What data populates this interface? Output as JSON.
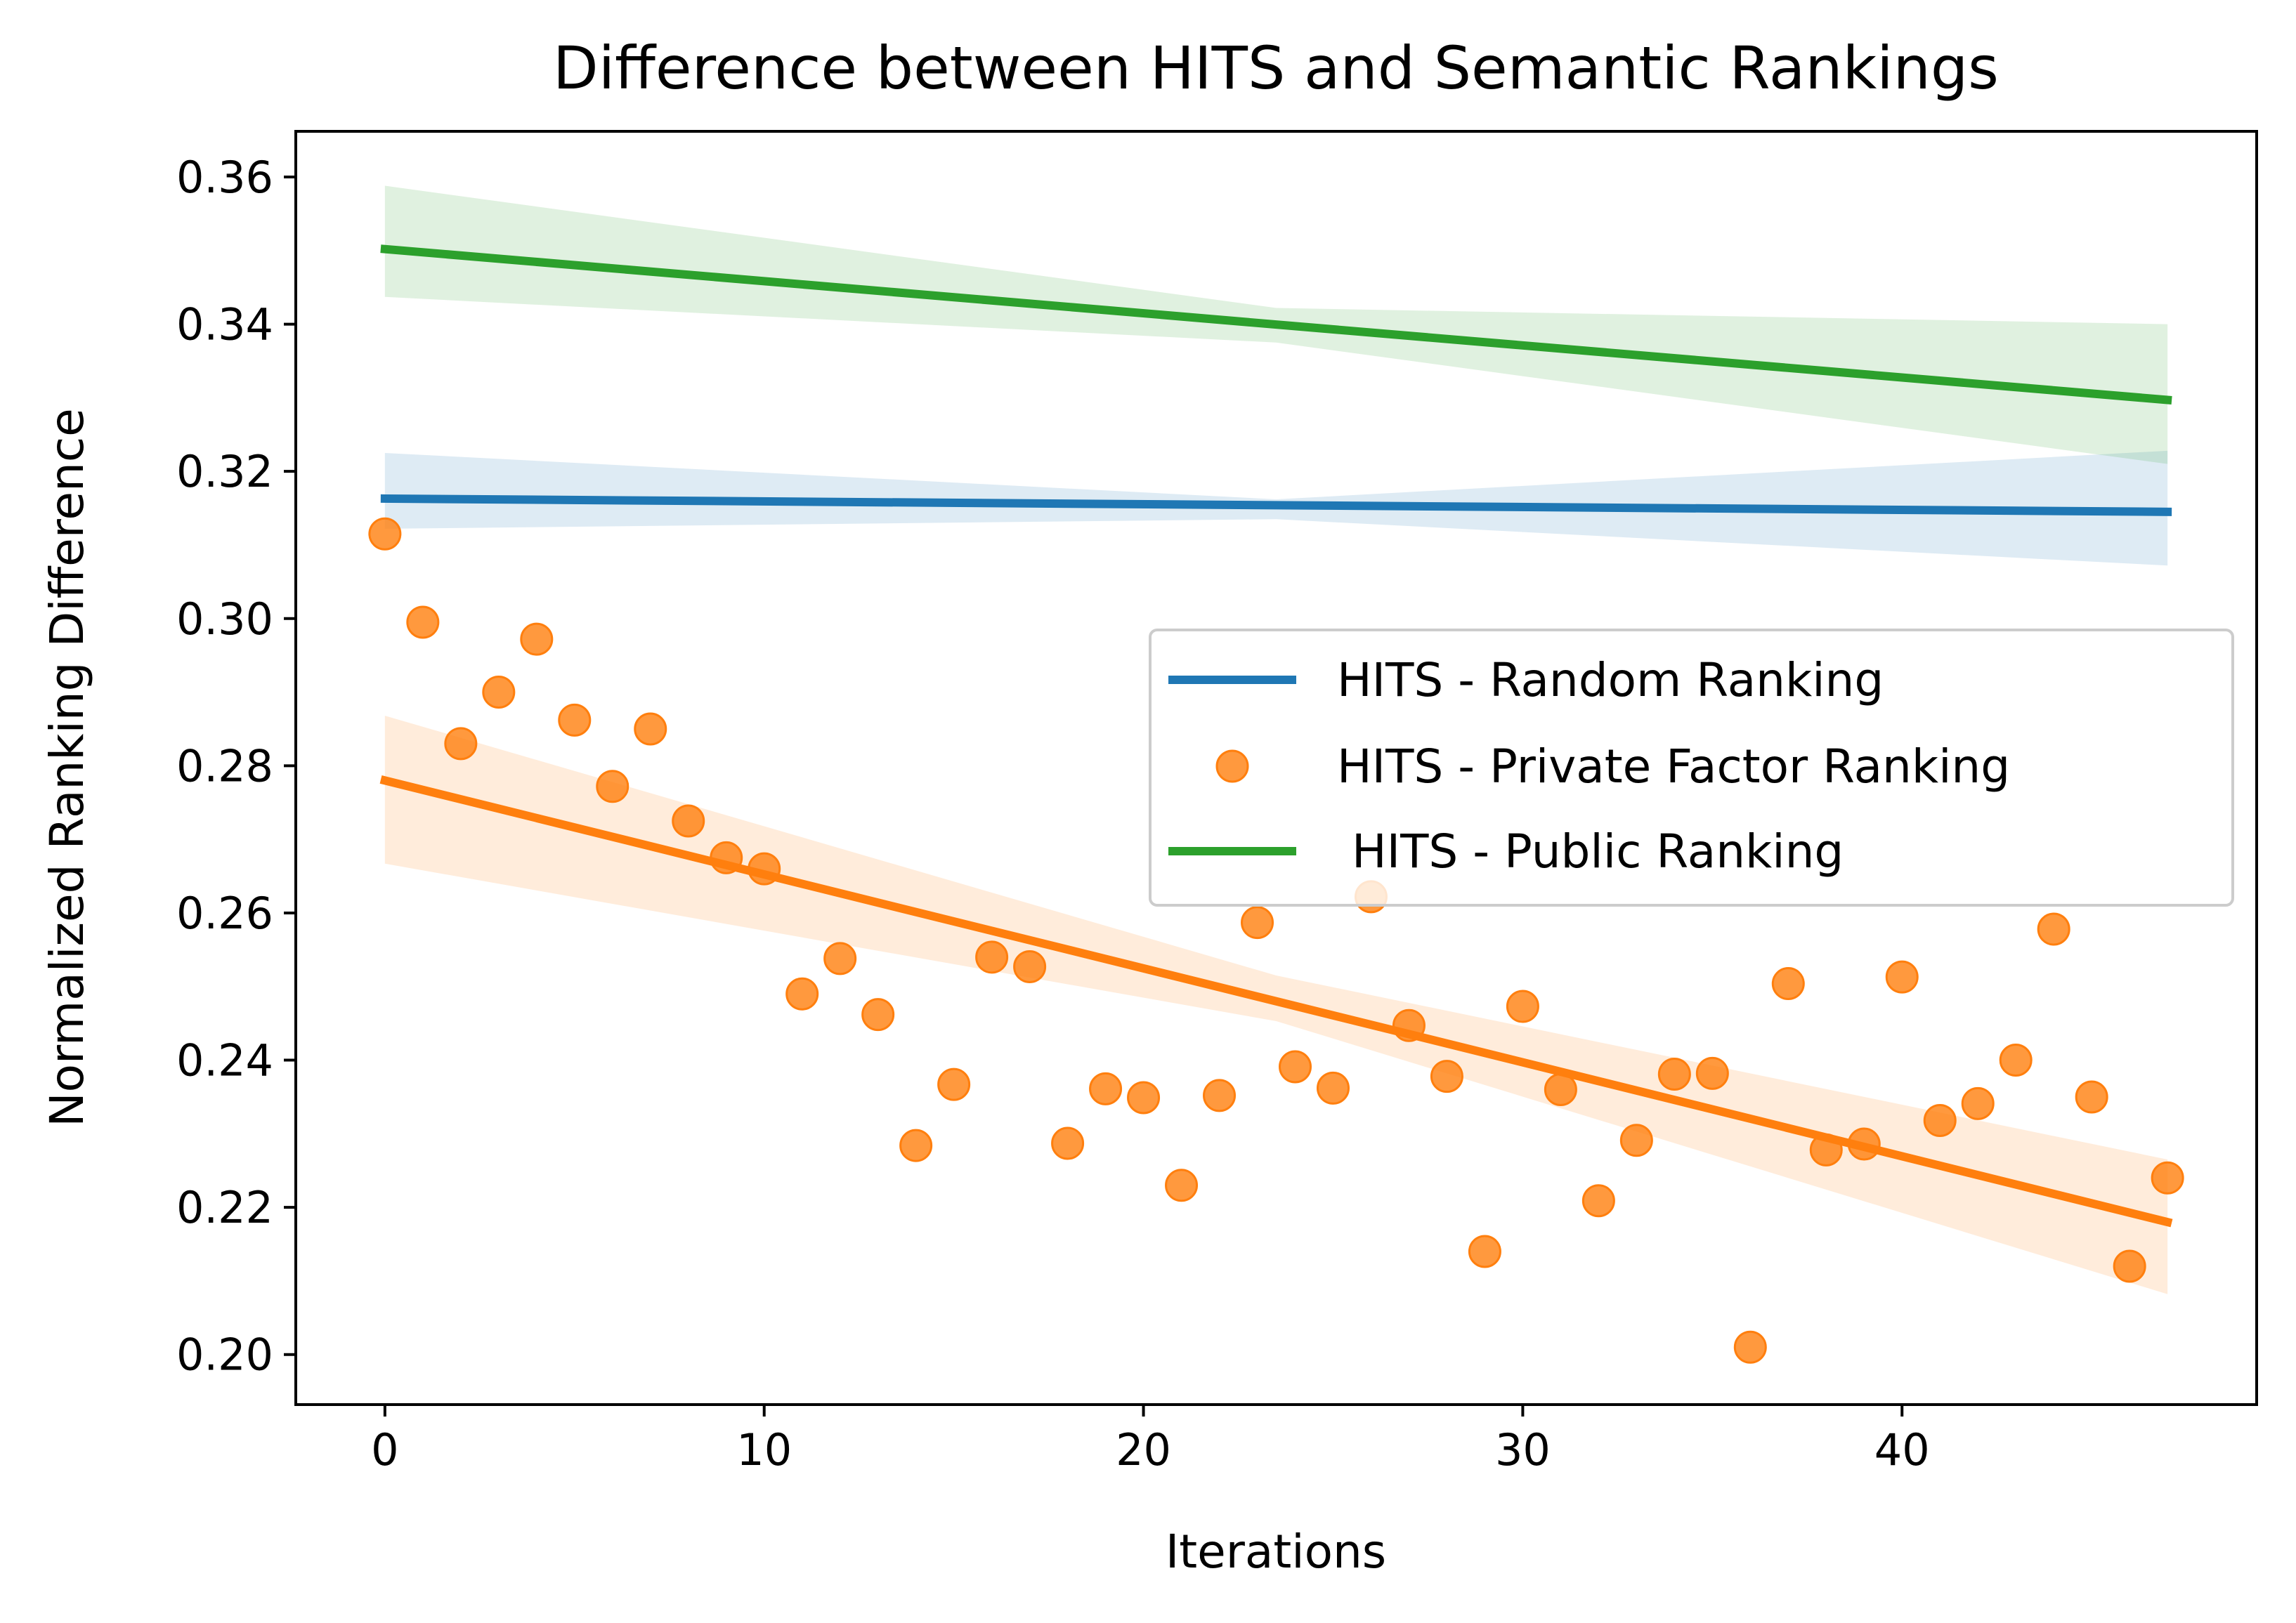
{
  "chart_data": {
    "type": "scatter",
    "title": "Difference between HITS and Semantic Rankings",
    "xlabel": "Iterations",
    "ylabel": "Normalized Ranking Difference",
    "xlim": [
      -2.35,
      49.35
    ],
    "ylim": [
      0.1932,
      0.3662
    ],
    "xticks": [
      "0",
      "10",
      "20",
      "30",
      "40"
    ],
    "xtick_values": [
      0,
      10,
      20,
      30,
      40
    ],
    "yticks": [
      "0.20",
      "0.22",
      "0.24",
      "0.26",
      "0.28",
      "0.30",
      "0.32",
      "0.34",
      "0.36"
    ],
    "ytick_values": [
      0.2,
      0.22,
      0.24,
      0.26,
      0.28,
      0.3,
      0.32,
      0.34,
      0.36
    ],
    "grid": false,
    "legend_position": "center-right",
    "series": [
      {
        "name": "HITS - Random Ranking",
        "kind": "line",
        "color": "#1f77b4",
        "x": [
          0,
          47
        ],
        "y": [
          0.3163,
          0.3145
        ],
        "band_x": [
          0,
          23.5,
          47
        ],
        "band_low": [
          0.3122,
          0.3135,
          0.3072
        ],
        "band_high": [
          0.3225,
          0.3162,
          0.3228
        ]
      },
      {
        "name": "HITS - Private Factor Ranking",
        "kind": "scatter_with_fit",
        "color": "#ff7f0e",
        "x": [
          0,
          1,
          2,
          3,
          4,
          5,
          6,
          7,
          8,
          9,
          10,
          11,
          12,
          13,
          14,
          15,
          16,
          17,
          18,
          19,
          20,
          21,
          22,
          23,
          24,
          25,
          26,
          27,
          28,
          29,
          30,
          31,
          32,
          33,
          34,
          35,
          36,
          37,
          38,
          39,
          40,
          41,
          42,
          43,
          44,
          45,
          46,
          47
        ],
        "y": [
          0.3115,
          0.2995,
          0.283,
          0.29,
          0.2972,
          0.2862,
          0.2772,
          0.285,
          0.2725,
          0.2675,
          0.266,
          0.249,
          0.2538,
          0.2462,
          0.2284,
          0.2367,
          0.254,
          0.2527,
          0.2287,
          0.2361,
          0.2349,
          0.223,
          0.2352,
          0.2587,
          0.2391,
          0.2362,
          0.2622,
          0.2447,
          0.2378,
          0.214,
          0.2473,
          0.236,
          0.2209,
          0.2291,
          0.2381,
          0.2382,
          0.201,
          0.2504,
          0.2278,
          0.2286,
          0.2513,
          0.2318,
          0.2341,
          0.24,
          0.2578,
          0.235,
          0.212,
          0.224
        ],
        "fit_x": [
          0,
          47
        ],
        "fit_y": [
          0.278,
          0.218
        ],
        "band_x": [
          0,
          23.5,
          47
        ],
        "band_low": [
          0.2667,
          0.2453,
          0.2082
        ],
        "band_high": [
          0.2868,
          0.2515,
          0.2265
        ]
      },
      {
        "name": " HITS - Public Ranking",
        "kind": "line",
        "color": "#2ca02c",
        "x": [
          0,
          47
        ],
        "y": [
          0.3502,
          0.3297
        ],
        "band_x": [
          0,
          23.5,
          47
        ],
        "band_low": [
          0.3437,
          0.3375,
          0.321
        ],
        "band_high": [
          0.3588,
          0.3422,
          0.34
        ]
      }
    ]
  }
}
